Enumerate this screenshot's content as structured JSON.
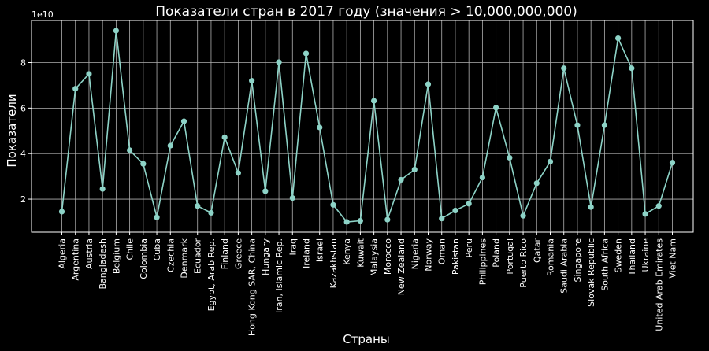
{
  "chart_data": {
    "type": "line",
    "title": "Показатели стран в 2017 году (значения > 10,000,000,000)",
    "xlabel": "Страны",
    "ylabel": "Показатели",
    "y_multiplier": "1e10",
    "ylim": [
      0.55,
      9.85
    ],
    "yticks": [
      2,
      4,
      6,
      8
    ],
    "grid": true,
    "line_color": "#8dd3c7",
    "background": "#000000",
    "categories": [
      "Algeria",
      "Argentina",
      "Austria",
      "Bangladesh",
      "Belgium",
      "Chile",
      "Colombia",
      "Cuba",
      "Czechia",
      "Denmark",
      "Ecuador",
      "Egypt, Arab Rep.",
      "Finland",
      "Greece",
      "Hong Kong SAR, China",
      "Hungary",
      "Iran, Islamic Rep.",
      "Iraq",
      "Ireland",
      "Israel",
      "Kazakhstan",
      "Kenya",
      "Kuwait",
      "Malaysia",
      "Morocco",
      "New Zealand",
      "Nigeria",
      "Norway",
      "Oman",
      "Pakistan",
      "Peru",
      "Philippines",
      "Poland",
      "Portugal",
      "Puerto Rico",
      "Qatar",
      "Romania",
      "Saudi Arabia",
      "Singapore",
      "Slovak Republic",
      "South Africa",
      "Sweden",
      "Thailand",
      "Ukraine",
      "United Arab Emirates",
      "Viet Nam"
    ],
    "values": [
      1.45,
      6.85,
      7.5,
      2.45,
      9.4,
      4.15,
      3.55,
      1.2,
      4.35,
      5.42,
      1.7,
      1.4,
      4.72,
      3.15,
      7.2,
      2.35,
      8.02,
      2.05,
      8.4,
      5.15,
      1.75,
      1.0,
      1.05,
      6.32,
      1.1,
      2.85,
      3.3,
      7.05,
      1.15,
      1.5,
      1.8,
      2.95,
      6.02,
      3.82,
      1.27,
      2.7,
      3.65,
      7.75,
      5.25,
      1.65,
      5.25,
      9.07,
      7.75,
      1.35,
      1.7,
      3.6
    ]
  }
}
